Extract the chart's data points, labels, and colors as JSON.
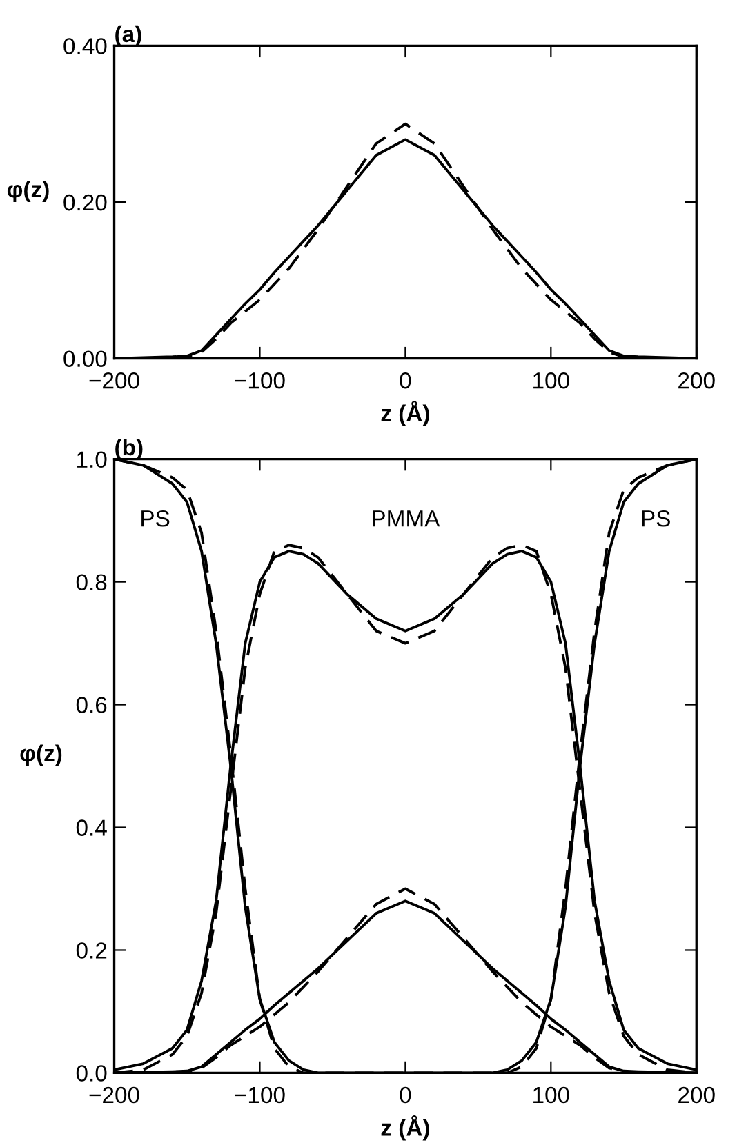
{
  "chart_data": [
    {
      "type": "line",
      "title": "(a)",
      "xlabel": "z (Å)",
      "ylabel": "φ(z)",
      "xlim": [
        -200,
        200
      ],
      "ylim": [
        0,
        0.4
      ],
      "xticks": [
        -200,
        -100,
        0,
        100,
        200
      ],
      "yticks": [
        {
          "value": 0,
          "label": "0.00"
        },
        {
          "value": 0.2,
          "label": "0.20"
        },
        {
          "value": 0.4,
          "label": "0.40"
        }
      ],
      "x": [
        -200,
        -180,
        -160,
        -150,
        -140,
        -130,
        -120,
        -110,
        -100,
        -90,
        -80,
        -70,
        -60,
        -40,
        -20,
        0,
        20,
        40,
        60,
        70,
        80,
        90,
        100,
        110,
        120,
        130,
        140,
        150,
        160,
        180,
        200
      ],
      "grid": false,
      "series": [
        {
          "color": "#000000",
          "line_style": "solid",
          "values": [
            0,
            0.001,
            0.002,
            0.003,
            0.01,
            0.03,
            0.05,
            0.07,
            0.088,
            0.11,
            0.13,
            0.15,
            0.17,
            0.215,
            0.26,
            0.28,
            0.26,
            0.215,
            0.17,
            0.15,
            0.13,
            0.11,
            0.088,
            0.07,
            0.05,
            0.03,
            0.01,
            0.003,
            0.002,
            0.001,
            0
          ]
        },
        {
          "color": "#000000",
          "line_style": "dashed",
          "values": [
            0,
            0,
            0.001,
            0.002,
            0.008,
            0.025,
            0.045,
            0.06,
            0.075,
            0.095,
            0.115,
            0.14,
            0.165,
            0.22,
            0.275,
            0.3,
            0.275,
            0.22,
            0.165,
            0.14,
            0.115,
            0.095,
            0.075,
            0.06,
            0.045,
            0.025,
            0.008,
            0.002,
            0.001,
            0,
            0
          ]
        }
      ]
    },
    {
      "type": "line",
      "title": "(b)",
      "xlabel": "z (Å)",
      "ylabel": "φ(z)",
      "xlim": [
        -200,
        200
      ],
      "ylim": [
        0,
        1.0
      ],
      "xticks": [
        -200,
        -100,
        0,
        100,
        200
      ],
      "yticks": [
        {
          "value": 0,
          "label": "0.0"
        },
        0.2,
        0.4,
        0.6,
        0.8,
        {
          "value": 1.0,
          "label": "1.0"
        }
      ],
      "annotations": [
        "PS",
        "PMMA",
        "PS"
      ],
      "x": [
        -200,
        -180,
        -160,
        -150,
        -140,
        -130,
        -120,
        -110,
        -100,
        -90,
        -80,
        -70,
        -60,
        -40,
        -20,
        0,
        20,
        40,
        60,
        70,
        80,
        90,
        100,
        110,
        120,
        130,
        140,
        150,
        160,
        180,
        200
      ],
      "grid": false,
      "series": [
        {
          "color": "#000000",
          "line_style": "solid",
          "values": [
            1.0,
            0.99,
            0.96,
            0.93,
            0.85,
            0.7,
            0.5,
            0.27,
            0.12,
            0.05,
            0.02,
            0.005,
            0,
            0,
            0,
            0,
            0,
            0,
            0,
            0.005,
            0.02,
            0.05,
            0.12,
            0.27,
            0.5,
            0.7,
            0.85,
            0.93,
            0.96,
            0.99,
            1.0
          ]
        },
        {
          "color": "#000000",
          "line_style": "dashed",
          "values": [
            1.0,
            0.99,
            0.97,
            0.95,
            0.88,
            0.72,
            0.52,
            0.3,
            0.12,
            0.04,
            0.01,
            0,
            0,
            0,
            0,
            0,
            0,
            0,
            0,
            0,
            0.01,
            0.04,
            0.12,
            0.3,
            0.52,
            0.72,
            0.88,
            0.95,
            0.97,
            0.99,
            1.0
          ]
        },
        {
          "color": "#000000",
          "line_style": "solid",
          "values": [
            0.005,
            0.015,
            0.04,
            0.07,
            0.15,
            0.28,
            0.5,
            0.7,
            0.8,
            0.84,
            0.85,
            0.845,
            0.83,
            0.78,
            0.74,
            0.72,
            0.74,
            0.78,
            0.83,
            0.845,
            0.85,
            0.84,
            0.8,
            0.7,
            0.5,
            0.28,
            0.15,
            0.07,
            0.04,
            0.015,
            0.005
          ]
        },
        {
          "color": "#000000",
          "line_style": "dashed",
          "values": [
            0,
            0.005,
            0.03,
            0.06,
            0.13,
            0.26,
            0.46,
            0.66,
            0.78,
            0.85,
            0.86,
            0.855,
            0.84,
            0.78,
            0.72,
            0.7,
            0.72,
            0.78,
            0.84,
            0.855,
            0.86,
            0.85,
            0.78,
            0.66,
            0.46,
            0.26,
            0.13,
            0.06,
            0.03,
            0.005,
            0
          ]
        },
        {
          "color": "#000000",
          "line_style": "solid",
          "values": [
            0,
            0.001,
            0.002,
            0.003,
            0.01,
            0.03,
            0.05,
            0.07,
            0.088,
            0.11,
            0.13,
            0.15,
            0.17,
            0.215,
            0.26,
            0.28,
            0.26,
            0.215,
            0.17,
            0.15,
            0.13,
            0.11,
            0.088,
            0.07,
            0.05,
            0.03,
            0.01,
            0.003,
            0.002,
            0.001,
            0
          ]
        },
        {
          "color": "#000000",
          "line_style": "dashed",
          "values": [
            0,
            0,
            0.001,
            0.002,
            0.008,
            0.025,
            0.045,
            0.06,
            0.075,
            0.095,
            0.115,
            0.14,
            0.165,
            0.22,
            0.275,
            0.3,
            0.275,
            0.22,
            0.165,
            0.14,
            0.115,
            0.095,
            0.075,
            0.06,
            0.045,
            0.025,
            0.008,
            0.002,
            0.001,
            0,
            0
          ]
        }
      ]
    }
  ]
}
